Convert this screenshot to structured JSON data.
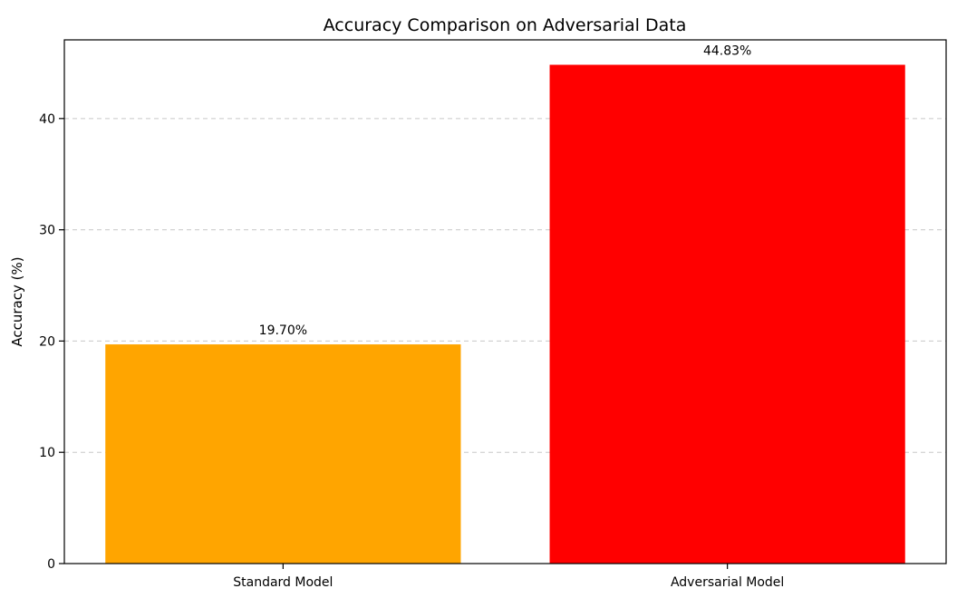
{
  "chart_data": {
    "type": "bar",
    "title": "Accuracy Comparison on Adversarial Data",
    "xlabel": "",
    "ylabel": "Accuracy (%)",
    "categories": [
      "Standard Model",
      "Adversarial Model"
    ],
    "values": [
      19.7,
      44.83
    ],
    "data_labels": [
      "19.70%",
      "44.83%"
    ],
    "colors": [
      "#ffa500",
      "#ff0000"
    ],
    "ylim": [
      0,
      47.07
    ],
    "yticks": [
      0,
      10,
      20,
      30,
      40
    ],
    "grid": "y-dashed",
    "legend": "none"
  }
}
